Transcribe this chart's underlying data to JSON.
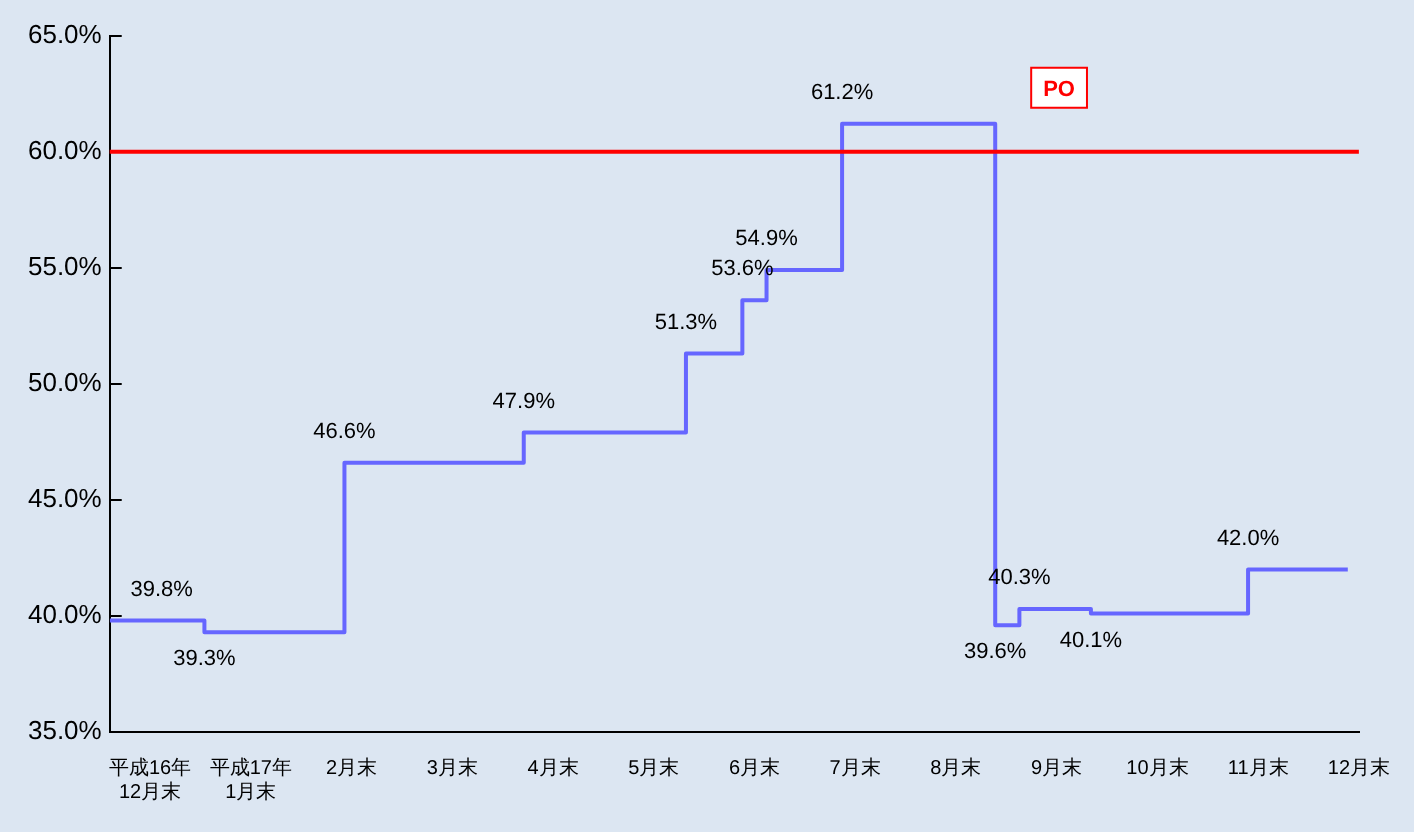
{
  "chart_data": {
    "type": "step",
    "x": [
      -0.4,
      0.54,
      1.93,
      3.71,
      5.32,
      5.88,
      6.12,
      6.87,
      8.39,
      8.63,
      9.34,
      10.9,
      11.89
    ],
    "series": [
      {
        "color": "#6666ff",
        "values": [
          39.8,
          39.3,
          46.6,
          47.9,
          51.3,
          53.6,
          54.9,
          61.2,
          39.6,
          40.3,
          40.1,
          42.0,
          42.0
        ],
        "value_labels": [
          "39.8%",
          "39.3%",
          "46.6%",
          "47.9%",
          "51.3%",
          "53.6%",
          "54.9%",
          "61.2%",
          "39.6%",
          "40.3%",
          "40.1%",
          "42.0%",
          null
        ]
      }
    ],
    "xlim": [
      -0.4,
      12
    ],
    "xticks": [
      {
        "value": 0,
        "label": "平成16年\n12月末"
      },
      {
        "value": 1,
        "label": "平成17年\n1月末"
      },
      {
        "value": 2,
        "label": "2月末"
      },
      {
        "value": 3,
        "label": "3月末"
      },
      {
        "value": 4,
        "label": "4月末"
      },
      {
        "value": 5,
        "label": "5月末"
      },
      {
        "value": 6,
        "label": "6月末"
      },
      {
        "value": 7,
        "label": "7月末"
      },
      {
        "value": 8,
        "label": "8月末"
      },
      {
        "value": 9,
        "label": "9月末"
      },
      {
        "value": 10,
        "label": "10月末"
      },
      {
        "value": 11,
        "label": "11月末"
      },
      {
        "value": 12,
        "label": "12月末"
      }
    ],
    "ylim": [
      35,
      65
    ],
    "yticks": [
      {
        "value": 35,
        "label": "35.0%"
      },
      {
        "value": 40,
        "label": "40.0%"
      },
      {
        "value": 45,
        "label": "45.0%"
      },
      {
        "value": 50,
        "label": "50.0%"
      },
      {
        "value": 55,
        "label": "55.0%"
      },
      {
        "value": 60,
        "label": "60.0%"
      },
      {
        "value": 65,
        "label": "65.0%"
      }
    ],
    "ref_lines": [
      {
        "axis": "y",
        "value": 60,
        "label": "PO",
        "color": "#ff0000"
      }
    ],
    "grid": false,
    "legend": false,
    "marker": "none",
    "line_style": "solid"
  }
}
